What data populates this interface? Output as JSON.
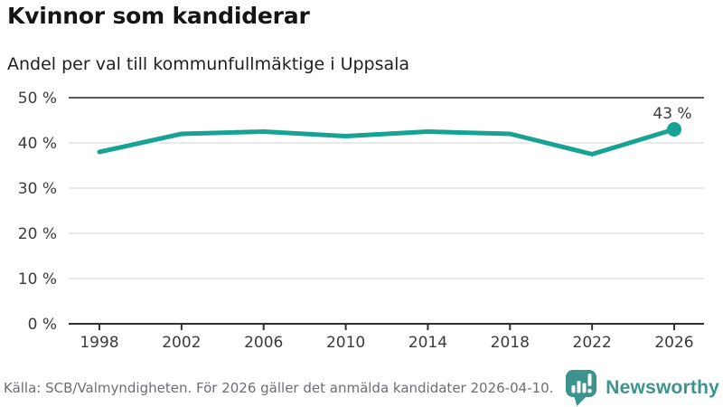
{
  "header": {
    "title": "Kvinnor som kandiderar",
    "subtitle": "Andel per val till kommunfullmäktige i Uppsala"
  },
  "chart_data": {
    "type": "line",
    "title": "Kvinnor som kandiderar",
    "subtitle": "Andel per val till kommunfullmäktige i Uppsala",
    "categories": [
      "1998",
      "2002",
      "2006",
      "2010",
      "2014",
      "2018",
      "2022",
      "2026"
    ],
    "values": [
      38,
      42,
      42.5,
      41.5,
      42.5,
      42,
      37.5,
      43
    ],
    "xlabel": "",
    "ylabel": "",
    "ylim": [
      0,
      50
    ],
    "yticks": [
      0,
      10,
      20,
      30,
      40,
      50
    ],
    "ytick_suffix": " %",
    "grid": "horizontal",
    "legend": "none",
    "end_point_label": "43 %",
    "line_color": "#16a294",
    "annotation_color": "#1c1c1c",
    "gridline_color": "#dcdcdc",
    "top_line_color": "#58595b",
    "axis_line_color": "#303030"
  },
  "footer": {
    "source": "Källa: SCB/Valmyndigheten. För 2026 gäller det anmälda kandidater 2026-04-10.",
    "brand": "Newsworthy",
    "brand_color": "#3d938d"
  }
}
